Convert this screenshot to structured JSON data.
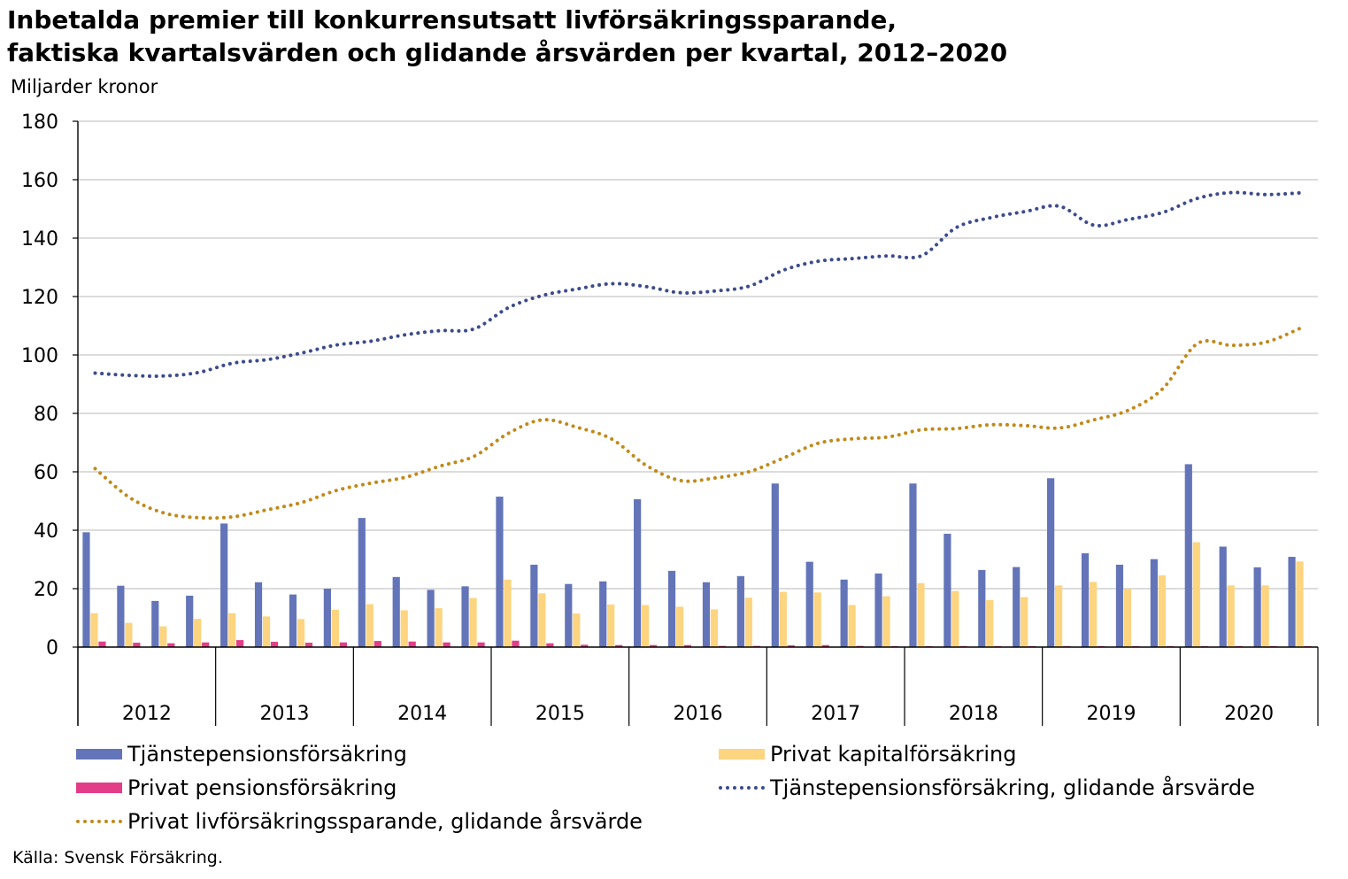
{
  "title_lines": [
    "Inbetalda premier till konkurrensutsatt livförsäkringssparande,",
    "faktiska kvartalsvärden och glidande årsvärden per kvartal, 2012–2020"
  ],
  "source": "Källa: Svensk Försäkring.",
  "colors": {
    "tjanstepension": "#6375b8",
    "privat_kapital": "#fdd47f",
    "privat_pension": "#e43d87",
    "tjanstepension_rolling": "#3c4c8c",
    "privat_rolling": "#c08a1a",
    "grid": "#c8c8c8",
    "axis": "#000000"
  },
  "chart_data": {
    "type": "bar",
    "ylabel": "Miljarder kronor",
    "ylim": [
      0,
      180
    ],
    "yticks": [
      0,
      20,
      40,
      60,
      80,
      100,
      120,
      140,
      160,
      180
    ],
    "grid": true,
    "legend_position": "bottom",
    "years": [
      "2012",
      "2013",
      "2014",
      "2015",
      "2016",
      "2017",
      "2018",
      "2019",
      "2020"
    ],
    "quarters_per_year": 4,
    "series": [
      {
        "name": "Tjänstepensionsförsäkring",
        "kind": "bar",
        "values": [
          39.3,
          21,
          15.8,
          17.6,
          42.3,
          22.2,
          18,
          20,
          44.2,
          24,
          19.6,
          20.8,
          51.5,
          28.2,
          21.6,
          22.5,
          50.6,
          26.1,
          22.2,
          24.3,
          56,
          29.2,
          23.1,
          25.2,
          56,
          38.8,
          26.4,
          27.4,
          57.8,
          32.1,
          28.2,
          30.1,
          62.6,
          34.4,
          27.3,
          30.9
        ]
      },
      {
        "name": "Privat kapitalförsäkring",
        "kind": "bar",
        "values": [
          11.6,
          8.3,
          7.1,
          9.7,
          11.6,
          10.5,
          9.6,
          12.8,
          14.7,
          12.6,
          13.3,
          16.8,
          23.1,
          18.4,
          11.5,
          14.6,
          14.4,
          13.8,
          12.9,
          16.9,
          18.9,
          18.7,
          14.4,
          17.4,
          21.9,
          19.2,
          16.1,
          17.1,
          21.1,
          22.3,
          20,
          24.6,
          35.9,
          21.1,
          21.1,
          29.3
        ]
      },
      {
        "name": "Privat pensionsförsäkring",
        "kind": "bar",
        "values": [
          1.9,
          1.5,
          1.3,
          1.6,
          2.4,
          1.8,
          1.5,
          1.6,
          2.1,
          1.9,
          1.6,
          1.6,
          2.2,
          1.3,
          0.8,
          0.7,
          0.7,
          0.7,
          0.4,
          0.4,
          0.6,
          0.7,
          0.4,
          0.3,
          0.3,
          0.3,
          0.3,
          0.3,
          0.3,
          0.3,
          0.3,
          0.3,
          0.3,
          0.3,
          0.3,
          0.3
        ]
      },
      {
        "name": "Tjänstepensionsförsäkring, glidande årsvärde",
        "kind": "line",
        "values": [
          93.8,
          93,
          92.8,
          94,
          97.2,
          98.4,
          100.7,
          103.4,
          104.7,
          106.9,
          108.3,
          108.9,
          116.2,
          120.4,
          122.6,
          124.4,
          123.4,
          121.3,
          121.9,
          123.6,
          129.1,
          132.1,
          133,
          133.9,
          134,
          143.6,
          147,
          149.1,
          150.9,
          144.4,
          146.4,
          148.8,
          153.6,
          155.6,
          154.9,
          155.5
        ]
      },
      {
        "name": "Privat livförsäkringssparande, glidande årsvärde",
        "kind": "line",
        "values": [
          61.1,
          51.2,
          45.9,
          44.3,
          44.6,
          47,
          49.5,
          53.6,
          56.1,
          58.1,
          61.9,
          65.3,
          73.2,
          77.8,
          75.2,
          71.2,
          62.2,
          57,
          57.9,
          60.1,
          64.8,
          69.8,
          71.3,
          71.9,
          74.4,
          74.8,
          76.1,
          75.8,
          75,
          77.8,
          81.1,
          88.5,
          103.9,
          103.3,
          104.4,
          109.2
        ]
      }
    ]
  }
}
